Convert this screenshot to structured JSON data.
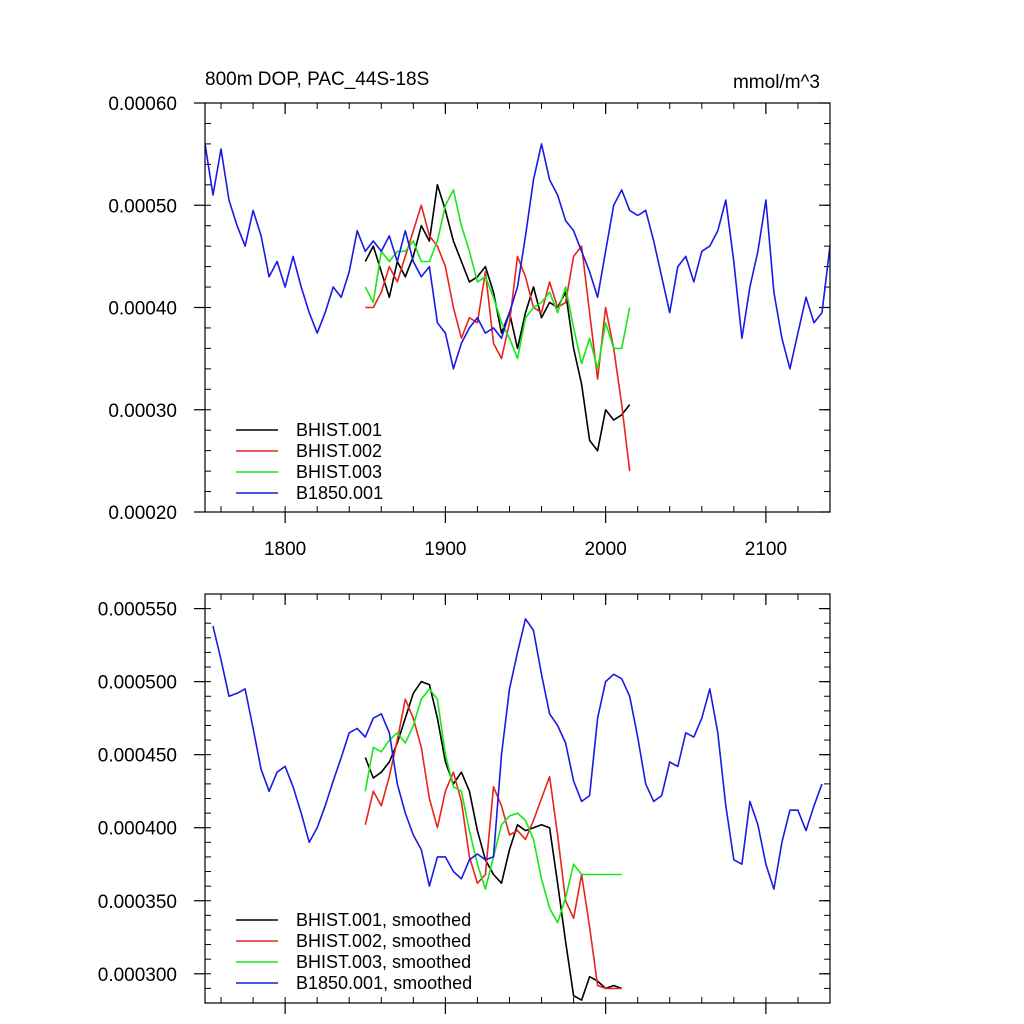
{
  "chart_data": [
    {
      "type": "line",
      "title": "800m DOP, PAC_44S-18S",
      "units": "mmol/m^3",
      "xlim": [
        1750,
        2140
      ],
      "ylim": [
        0.0002,
        0.0006
      ],
      "xticks": [
        1800,
        1900,
        2000,
        2100
      ],
      "xtick_labels": [
        "1800",
        "1900",
        "2000",
        "2100"
      ],
      "yticks": [
        0.0002,
        0.0003,
        0.0004,
        0.0005,
        0.0006
      ],
      "ytick_labels": [
        "0.00020",
        "0.00030",
        "0.00040",
        "0.00050",
        "0.00060"
      ],
      "legend_position": "bottom-left",
      "series": [
        {
          "name": "BHIST.001",
          "color": "#000000",
          "x": [
            1850,
            1855,
            1860,
            1865,
            1870,
            1875,
            1880,
            1885,
            1890,
            1895,
            1900,
            1905,
            1910,
            1915,
            1920,
            1925,
            1930,
            1935,
            1940,
            1945,
            1950,
            1955,
            1960,
            1965,
            1970,
            1975,
            1980,
            1985,
            1990,
            1995,
            2000,
            2005,
            2010,
            2015
          ],
          "y": [
            0.000445,
            0.00046,
            0.000435,
            0.00041,
            0.000445,
            0.00043,
            0.00045,
            0.00048,
            0.000465,
            0.00052,
            0.000495,
            0.000465,
            0.000445,
            0.000425,
            0.00043,
            0.00044,
            0.000415,
            0.000375,
            0.000395,
            0.00036,
            0.000395,
            0.00042,
            0.00039,
            0.000405,
            0.0004,
            0.000415,
            0.00036,
            0.000325,
            0.00027,
            0.00026,
            0.0003,
            0.00029,
            0.000295,
            0.000305
          ]
        },
        {
          "name": "BHIST.002",
          "color": "#e8241c",
          "x": [
            1850,
            1855,
            1860,
            1865,
            1870,
            1875,
            1880,
            1885,
            1890,
            1895,
            1900,
            1905,
            1910,
            1915,
            1920,
            1925,
            1930,
            1935,
            1940,
            1945,
            1950,
            1955,
            1960,
            1965,
            1970,
            1975,
            1980,
            1985,
            1990,
            1995,
            2000,
            2005,
            2010,
            2015
          ],
          "y": [
            0.0004,
            0.0004,
            0.000415,
            0.00044,
            0.000425,
            0.00045,
            0.000475,
            0.0005,
            0.00047,
            0.00046,
            0.00044,
            0.0004,
            0.00037,
            0.00039,
            0.000385,
            0.000435,
            0.000365,
            0.00035,
            0.000385,
            0.00045,
            0.00043,
            0.0004,
            0.000395,
            0.000425,
            0.0004,
            0.000405,
            0.00045,
            0.00046,
            0.000395,
            0.00033,
            0.0004,
            0.00036,
            0.000305,
            0.00024
          ]
        },
        {
          "name": "BHIST.003",
          "color": "#19e619",
          "x": [
            1850,
            1855,
            1860,
            1865,
            1870,
            1875,
            1880,
            1885,
            1890,
            1895,
            1900,
            1905,
            1910,
            1915,
            1920,
            1925,
            1930,
            1935,
            1940,
            1945,
            1950,
            1955,
            1960,
            1965,
            1970,
            1975,
            1980,
            1985,
            1990,
            1995,
            2000,
            2005,
            2010,
            2015
          ],
          "y": [
            0.00042,
            0.000405,
            0.000455,
            0.000445,
            0.000455,
            0.000455,
            0.000465,
            0.000445,
            0.000445,
            0.000465,
            0.0005,
            0.000515,
            0.00048,
            0.000455,
            0.000425,
            0.00043,
            0.00041,
            0.000385,
            0.00037,
            0.00035,
            0.00039,
            0.0004,
            0.000405,
            0.000415,
            0.000395,
            0.00042,
            0.00038,
            0.000345,
            0.00037,
            0.00034,
            0.000385,
            0.00036,
            0.00036,
            0.0004
          ]
        },
        {
          "name": "B1850.001",
          "color": "#1a1ae6",
          "x": [
            1750,
            1755,
            1760,
            1765,
            1770,
            1775,
            1780,
            1785,
            1790,
            1795,
            1800,
            1805,
            1810,
            1815,
            1820,
            1825,
            1830,
            1835,
            1840,
            1845,
            1850,
            1855,
            1860,
            1865,
            1870,
            1875,
            1880,
            1885,
            1890,
            1895,
            1900,
            1905,
            1910,
            1915,
            1920,
            1925,
            1930,
            1935,
            1940,
            1945,
            1950,
            1955,
            1960,
            1965,
            1970,
            1975,
            1980,
            1985,
            1990,
            1995,
            2000,
            2005,
            2010,
            2015,
            2020,
            2025,
            2030,
            2035,
            2040,
            2045,
            2050,
            2055,
            2060,
            2065,
            2070,
            2075,
            2080,
            2085,
            2090,
            2095,
            2100,
            2105,
            2110,
            2115,
            2120,
            2125,
            2130,
            2135,
            2140
          ],
          "y": [
            0.00056,
            0.00051,
            0.000555,
            0.000505,
            0.00048,
            0.00046,
            0.000495,
            0.00047,
            0.00043,
            0.000445,
            0.00042,
            0.00045,
            0.00042,
            0.000395,
            0.000375,
            0.000395,
            0.00042,
            0.00041,
            0.000435,
            0.000475,
            0.000455,
            0.000465,
            0.000455,
            0.00047,
            0.000445,
            0.000475,
            0.000445,
            0.00043,
            0.00044,
            0.000385,
            0.000375,
            0.00034,
            0.000365,
            0.00038,
            0.00039,
            0.000375,
            0.00038,
            0.00037,
            0.000395,
            0.00042,
            0.00047,
            0.000525,
            0.00056,
            0.000525,
            0.00051,
            0.000485,
            0.000475,
            0.000455,
            0.000435,
            0.00041,
            0.000455,
            0.0005,
            0.000515,
            0.000495,
            0.00049,
            0.000495,
            0.000465,
            0.00043,
            0.000395,
            0.00044,
            0.00045,
            0.000425,
            0.000455,
            0.00046,
            0.000475,
            0.000505,
            0.000445,
            0.00037,
            0.00042,
            0.000455,
            0.000505,
            0.000415,
            0.00037,
            0.00034,
            0.000375,
            0.00041,
            0.000385,
            0.000395,
            0.00046
          ]
        }
      ]
    },
    {
      "type": "line",
      "title": "",
      "xlim": [
        1750,
        2140
      ],
      "ylim": [
        0.00028,
        0.00056
      ],
      "xticks": [
        1800,
        1900,
        2000,
        2100
      ],
      "yticks": [
        0.0003,
        0.00035,
        0.0004,
        0.00045,
        0.0005,
        0.00055
      ],
      "ytick_labels": [
        "0.000300",
        "0.000350",
        "0.000400",
        "0.000450",
        "0.000500",
        "0.000550"
      ],
      "legend_position": "bottom-left",
      "series": [
        {
          "name": "BHIST.001, smoothed",
          "color": "#000000",
          "x": [
            1850,
            1855,
            1860,
            1865,
            1870,
            1875,
            1880,
            1885,
            1890,
            1895,
            1900,
            1905,
            1910,
            1915,
            1920,
            1925,
            1930,
            1935,
            1940,
            1945,
            1950,
            1955,
            1960,
            1965,
            1970,
            1975,
            1980,
            1985,
            1990,
            1995,
            2000,
            2005,
            2010
          ],
          "y": [
            0.000448,
            0.000434,
            0.000438,
            0.000445,
            0.000458,
            0.000475,
            0.000492,
            0.0005,
            0.000498,
            0.000475,
            0.000445,
            0.00043,
            0.000438,
            0.000425,
            0.000398,
            0.000378,
            0.000368,
            0.000362,
            0.000385,
            0.000402,
            0.000398,
            0.0004,
            0.000402,
            0.0004,
            0.000362,
            0.000322,
            0.000285,
            0.000282,
            0.000298,
            0.000295,
            0.00029,
            0.000292,
            0.00029
          ]
        },
        {
          "name": "BHIST.002, smoothed",
          "color": "#e8241c",
          "x": [
            1850,
            1855,
            1860,
            1865,
            1870,
            1875,
            1880,
            1885,
            1890,
            1895,
            1900,
            1905,
            1910,
            1915,
            1920,
            1925,
            1930,
            1935,
            1940,
            1945,
            1950,
            1955,
            1960,
            1965,
            1970,
            1975,
            1980,
            1985,
            1990,
            1995,
            2000,
            2005,
            2010
          ],
          "y": [
            0.000402,
            0.000425,
            0.000415,
            0.000435,
            0.00046,
            0.000488,
            0.000475,
            0.000455,
            0.00042,
            0.0004,
            0.000425,
            0.000438,
            0.000418,
            0.00038,
            0.000362,
            0.000368,
            0.000428,
            0.000415,
            0.000395,
            0.000398,
            0.000392,
            0.000405,
            0.00042,
            0.000435,
            0.000395,
            0.00035,
            0.000338,
            0.000368,
            0.000332,
            0.000292,
            0.00029,
            0.00029,
            0.00029
          ]
        },
        {
          "name": "BHIST.003, smoothed",
          "color": "#19e619",
          "x": [
            1850,
            1855,
            1860,
            1865,
            1870,
            1875,
            1880,
            1885,
            1890,
            1895,
            1900,
            1905,
            1910,
            1915,
            1920,
            1925,
            1930,
            1935,
            1940,
            1945,
            1950,
            1955,
            1960,
            1965,
            1970,
            1975,
            1980,
            1985,
            1990,
            1995,
            2000,
            2005,
            2010
          ],
          "y": [
            0.000425,
            0.000455,
            0.000452,
            0.00046,
            0.000465,
            0.000458,
            0.00047,
            0.000488,
            0.000495,
            0.000488,
            0.00045,
            0.000428,
            0.000425,
            0.000398,
            0.000375,
            0.000358,
            0.00038,
            0.000402,
            0.000408,
            0.00041,
            0.000405,
            0.000392,
            0.000365,
            0.000345,
            0.000335,
            0.000352,
            0.000375,
            0.000368,
            0.000368,
            0.000368,
            0.000368,
            0.000368,
            0.000368
          ]
        },
        {
          "name": "B1850.001, smoothed",
          "color": "#1a1ae6",
          "x": [
            1755,
            1760,
            1765,
            1770,
            1775,
            1780,
            1785,
            1790,
            1795,
            1800,
            1805,
            1810,
            1815,
            1820,
            1825,
            1830,
            1835,
            1840,
            1845,
            1850,
            1855,
            1860,
            1865,
            1870,
            1875,
            1880,
            1885,
            1890,
            1895,
            1900,
            1905,
            1910,
            1915,
            1920,
            1925,
            1930,
            1935,
            1940,
            1945,
            1950,
            1955,
            1960,
            1965,
            1970,
            1975,
            1980,
            1985,
            1990,
            1995,
            2000,
            2005,
            2010,
            2015,
            2020,
            2025,
            2030,
            2035,
            2040,
            2045,
            2050,
            2055,
            2060,
            2065,
            2070,
            2075,
            2080,
            2085,
            2090,
            2095,
            2100,
            2105,
            2110,
            2115,
            2120,
            2125,
            2130,
            2135
          ],
          "y": [
            0.000538,
            0.000515,
            0.00049,
            0.000492,
            0.000495,
            0.000468,
            0.00044,
            0.000425,
            0.000438,
            0.000442,
            0.000428,
            0.00041,
            0.00039,
            0.0004,
            0.000415,
            0.000432,
            0.000448,
            0.000465,
            0.000468,
            0.000462,
            0.000475,
            0.000478,
            0.000465,
            0.00043,
            0.00041,
            0.000395,
            0.000385,
            0.00036,
            0.00038,
            0.00038,
            0.00037,
            0.000365,
            0.000378,
            0.000382,
            0.000378,
            0.00038,
            0.00045,
            0.000495,
            0.00052,
            0.000543,
            0.000535,
            0.000505,
            0.000478,
            0.00047,
            0.000458,
            0.000432,
            0.000418,
            0.000422,
            0.000475,
            0.0005,
            0.000505,
            0.000502,
            0.00049,
            0.000462,
            0.00043,
            0.000418,
            0.000422,
            0.000445,
            0.000442,
            0.000465,
            0.000462,
            0.000475,
            0.000495,
            0.000465,
            0.000415,
            0.000378,
            0.000375,
            0.000418,
            0.000402,
            0.000375,
            0.000358,
            0.00039,
            0.000412,
            0.000412,
            0.000398,
            0.000415,
            0.00043
          ]
        }
      ]
    }
  ]
}
